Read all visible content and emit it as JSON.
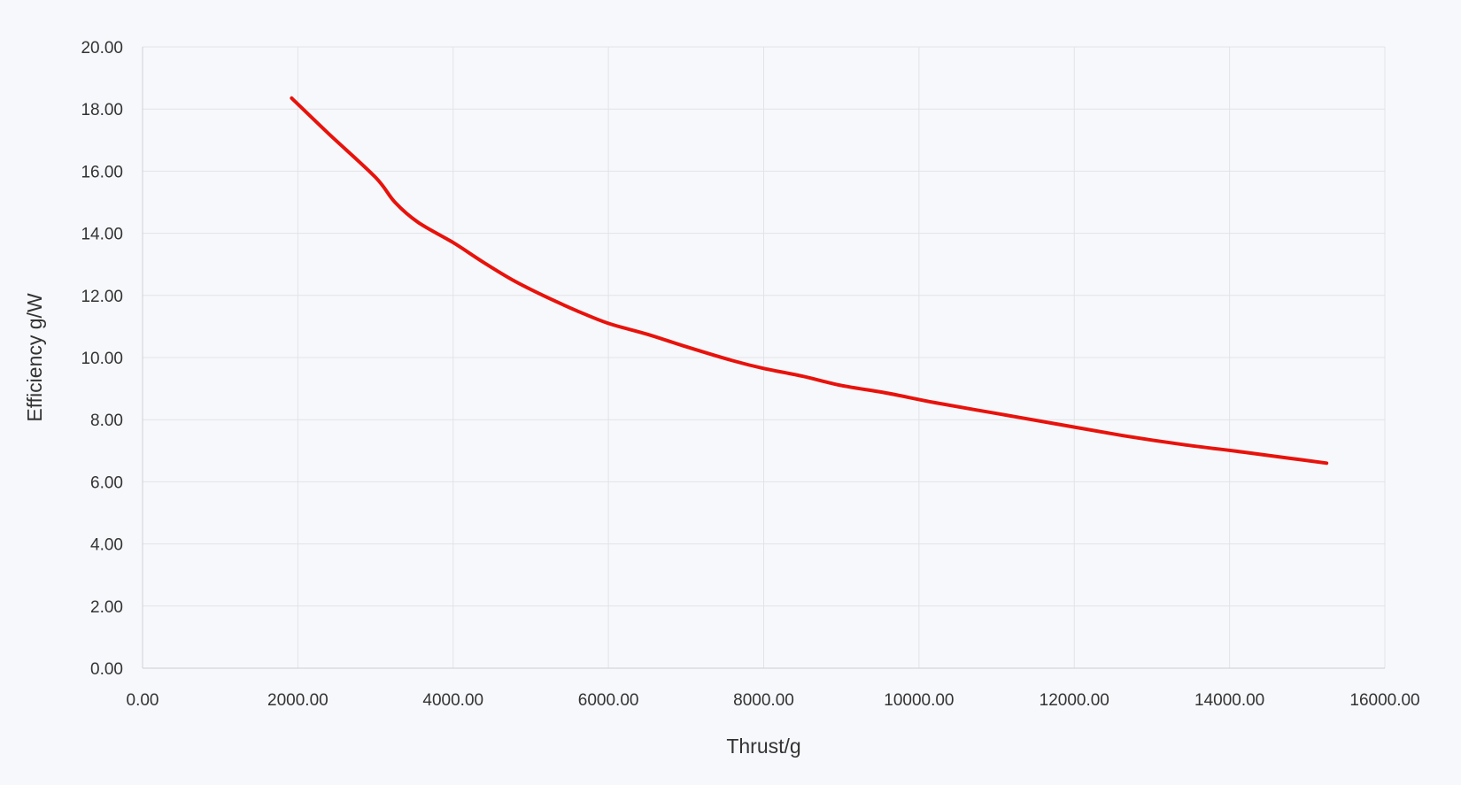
{
  "chart_data": {
    "type": "line",
    "title": "",
    "xlabel": "Thrust/g",
    "ylabel": "Efficiency g/W",
    "xlim": [
      0,
      16000
    ],
    "ylim": [
      0,
      20
    ],
    "xticks": [
      "0.00",
      "2000.00",
      "4000.00",
      "6000.00",
      "8000.00",
      "10000.00",
      "12000.00",
      "14000.00",
      "16000.00"
    ],
    "yticks": [
      "0.00",
      "2.00",
      "4.00",
      "6.00",
      "8.00",
      "10.00",
      "12.00",
      "14.00",
      "16.00",
      "18.00",
      "20.00"
    ],
    "grid": true,
    "legend": "none",
    "series": [
      {
        "color": "#e8120c",
        "x": [
          1920,
          2400,
          3000,
          3250,
          3550,
          4000,
          4400,
          4800,
          5200,
          5600,
          6000,
          6500,
          7000,
          7600,
          8000,
          8500,
          9000,
          9600,
          10200,
          11000,
          11800,
          12600,
          13400,
          14200,
          14800,
          15250
        ],
        "y": [
          18.35,
          17.2,
          15.8,
          15.0,
          14.35,
          13.7,
          13.05,
          12.45,
          11.95,
          11.5,
          11.1,
          10.75,
          10.35,
          9.9,
          9.65,
          9.4,
          9.1,
          8.85,
          8.55,
          8.2,
          7.85,
          7.5,
          7.2,
          6.95,
          6.75,
          6.6
        ]
      }
    ]
  }
}
